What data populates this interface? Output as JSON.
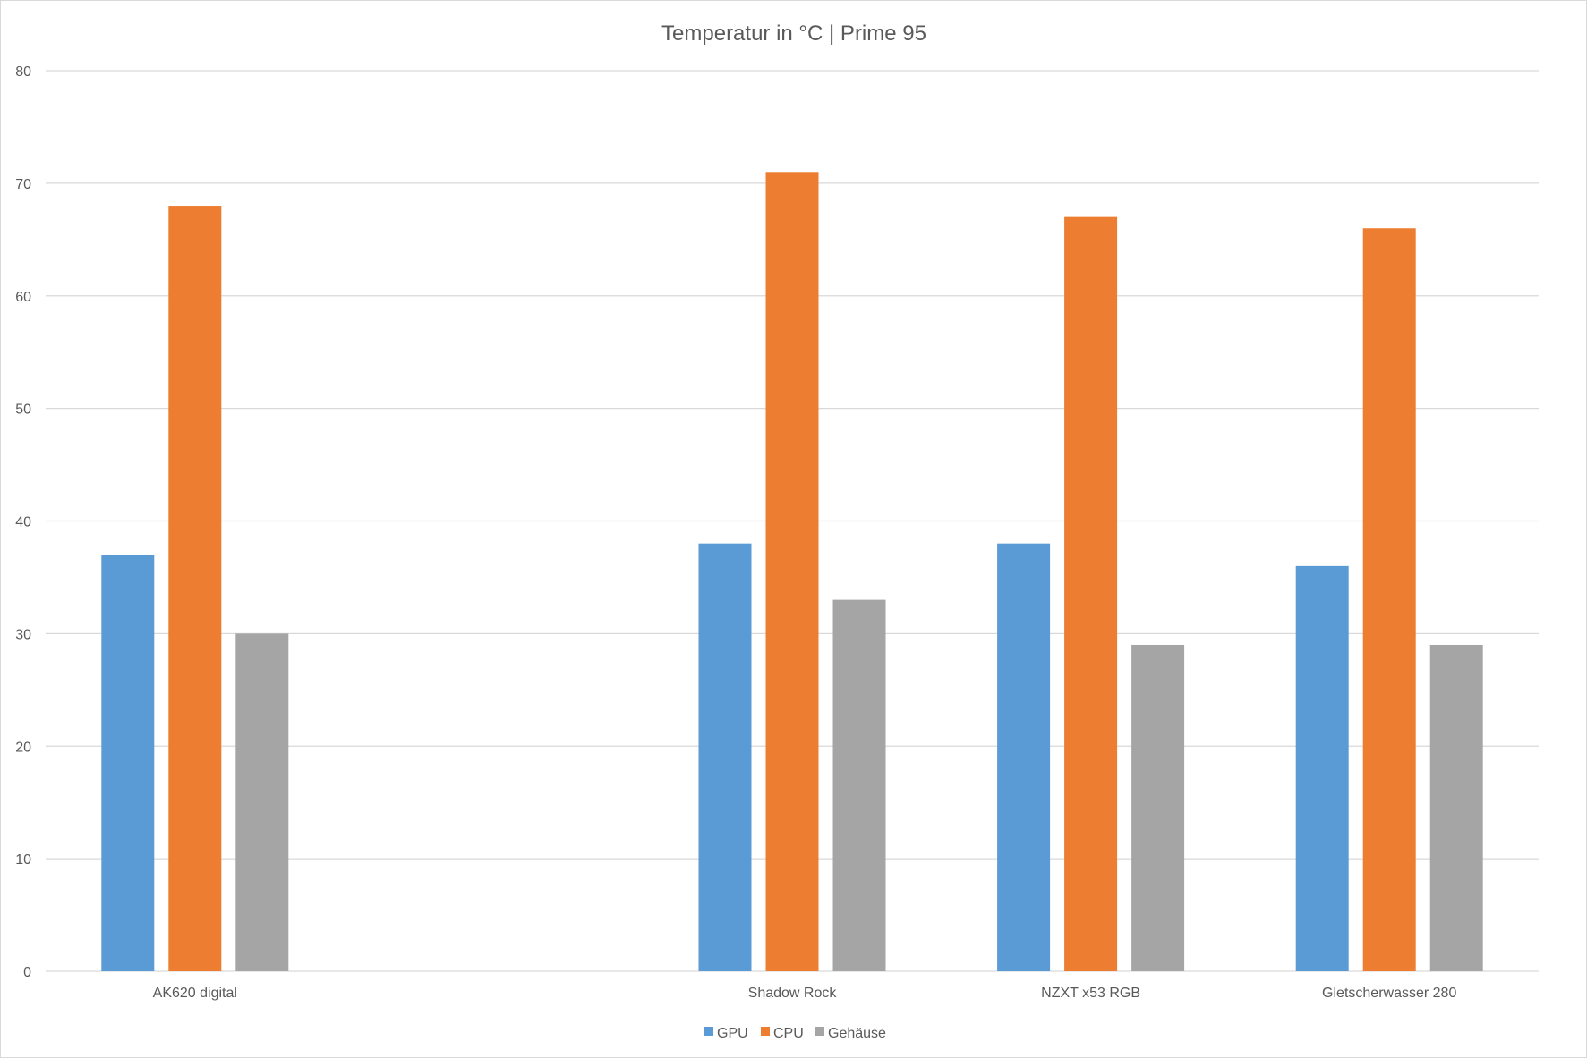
{
  "chart_data": {
    "type": "bar",
    "title": "Temperatur in °C | Prime 95",
    "categories": [
      "AK620 digital",
      "",
      "Shadow Rock",
      "NZXT x53 RGB",
      "Gletscherwasser 280"
    ],
    "series": [
      {
        "name": "GPU",
        "color": "#5b9bd5",
        "values": [
          37,
          null,
          38,
          38,
          36
        ]
      },
      {
        "name": "CPU",
        "color": "#ed7d31",
        "values": [
          68,
          null,
          71,
          67,
          66
        ]
      },
      {
        "name": "Gehäuse",
        "color": "#a5a5a5",
        "values": [
          30,
          null,
          33,
          29,
          29
        ]
      }
    ],
    "yticks": [
      "0",
      "10",
      "20",
      "30",
      "40",
      "50",
      "60",
      "70",
      "80"
    ],
    "ylim": [
      0,
      80
    ],
    "grid": true,
    "legend_position": "bottom"
  }
}
